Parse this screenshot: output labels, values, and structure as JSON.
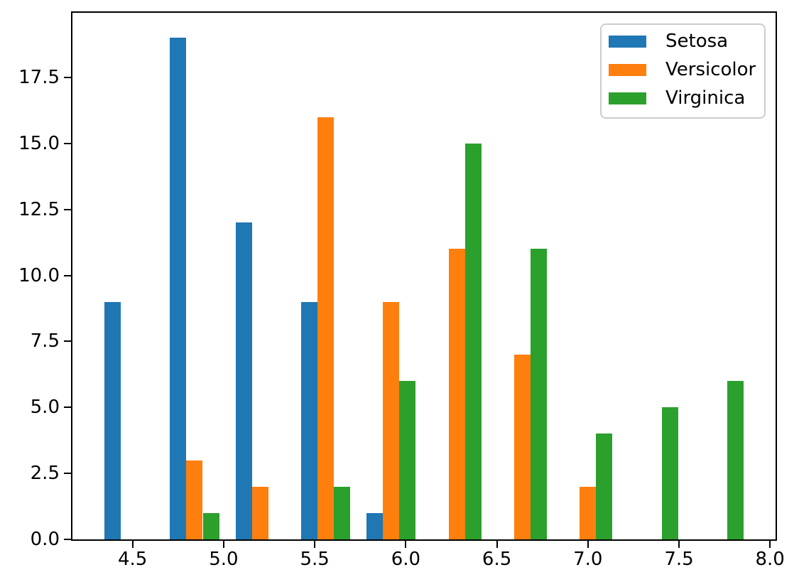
{
  "chart_data": {
    "type": "bar",
    "title": "",
    "xlabel": "",
    "ylabel": "",
    "grid": false,
    "xlim": [
      4.1695,
      8.0305
    ],
    "ylim": [
      0,
      19.95
    ],
    "bin_edges": [
      4.3,
      4.66,
      5.02,
      5.38,
      5.74,
      6.1,
      6.46,
      6.82,
      7.18,
      7.54,
      7.9
    ],
    "bin_centers": [
      4.48,
      4.84,
      5.2,
      5.56,
      5.92,
      6.28,
      6.64,
      7.0,
      7.36,
      7.72
    ],
    "bar_width_units": 0.09,
    "x_ticks": {
      "values": [
        4.5,
        5.0,
        5.5,
        6.0,
        6.5,
        7.0,
        7.5,
        8.0
      ],
      "labels": [
        "4.5",
        "5.0",
        "5.5",
        "6.0",
        "6.5",
        "7.0",
        "7.5",
        "8.0"
      ]
    },
    "y_ticks": {
      "values": [
        0.0,
        2.5,
        5.0,
        7.5,
        10.0,
        12.5,
        15.0,
        17.5
      ],
      "labels": [
        "0.0",
        "2.5",
        "5.0",
        "7.5",
        "10.0",
        "12.5",
        "15.0",
        "17.5"
      ]
    },
    "series": [
      {
        "name": "Setosa",
        "color": "#1f77b4",
        "values": [
          9,
          19,
          12,
          9,
          1,
          0,
          0,
          0,
          0,
          0
        ]
      },
      {
        "name": "Versicolor",
        "color": "#ff7f0e",
        "values": [
          0,
          3,
          2,
          16,
          9,
          11,
          7,
          2,
          0,
          0
        ]
      },
      {
        "name": "Virginica",
        "color": "#2ca02c",
        "values": [
          0,
          1,
          0,
          2,
          6,
          15,
          11,
          4,
          5,
          6
        ]
      }
    ],
    "legend": {
      "position": "upper right",
      "labels": [
        "Setosa",
        "Versicolor",
        "Virginica"
      ]
    }
  },
  "colors": {
    "axes": "#000000",
    "legend_border": "#cccccc",
    "background": "#ffffff"
  }
}
